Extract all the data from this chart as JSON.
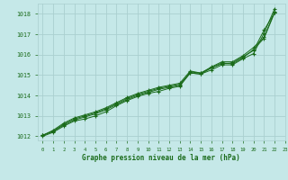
{
  "xlabel": "Graphe pression niveau de la mer (hPa)",
  "xlim": [
    -0.5,
    23
  ],
  "ylim": [
    1011.8,
    1018.5
  ],
  "yticks": [
    1012,
    1013,
    1014,
    1015,
    1016,
    1017,
    1018
  ],
  "xticks": [
    0,
    1,
    2,
    3,
    4,
    5,
    6,
    7,
    8,
    9,
    10,
    11,
    12,
    13,
    14,
    15,
    16,
    17,
    18,
    19,
    20,
    21,
    22,
    23
  ],
  "background_color": "#c5e8e8",
  "grid_color": "#aacfcf",
  "line_color": "#1a6b1a",
  "series": [
    [
      1012.0,
      1012.2,
      1012.5,
      1012.75,
      1012.85,
      1013.0,
      1013.2,
      1013.5,
      1013.75,
      1013.95,
      1014.1,
      1014.2,
      1014.35,
      1014.45,
      1015.1,
      1015.05,
      1015.25,
      1015.5,
      1015.5,
      1015.8,
      1016.05,
      1017.05,
      1018.25
    ],
    [
      1012.05,
      1012.25,
      1012.55,
      1012.8,
      1012.95,
      1013.1,
      1013.3,
      1013.55,
      1013.8,
      1014.0,
      1014.15,
      1014.3,
      1014.4,
      1014.5,
      1015.15,
      1015.1,
      1015.35,
      1015.55,
      1015.6,
      1015.9,
      1016.2,
      1017.2,
      1018.05
    ],
    [
      1012.05,
      1012.25,
      1012.6,
      1012.85,
      1013.0,
      1013.15,
      1013.35,
      1013.6,
      1013.85,
      1014.05,
      1014.2,
      1014.35,
      1014.45,
      1014.55,
      1015.1,
      1015.05,
      1015.35,
      1015.6,
      1015.55,
      1015.85,
      1016.25,
      1016.8,
      1018.05
    ],
    [
      1012.05,
      1012.3,
      1012.65,
      1012.9,
      1013.05,
      1013.2,
      1013.4,
      1013.65,
      1013.9,
      1014.1,
      1014.25,
      1014.4,
      1014.5,
      1014.6,
      1015.2,
      1015.1,
      1015.4,
      1015.65,
      1015.65,
      1015.95,
      1016.35,
      1016.85,
      1018.1
    ]
  ]
}
